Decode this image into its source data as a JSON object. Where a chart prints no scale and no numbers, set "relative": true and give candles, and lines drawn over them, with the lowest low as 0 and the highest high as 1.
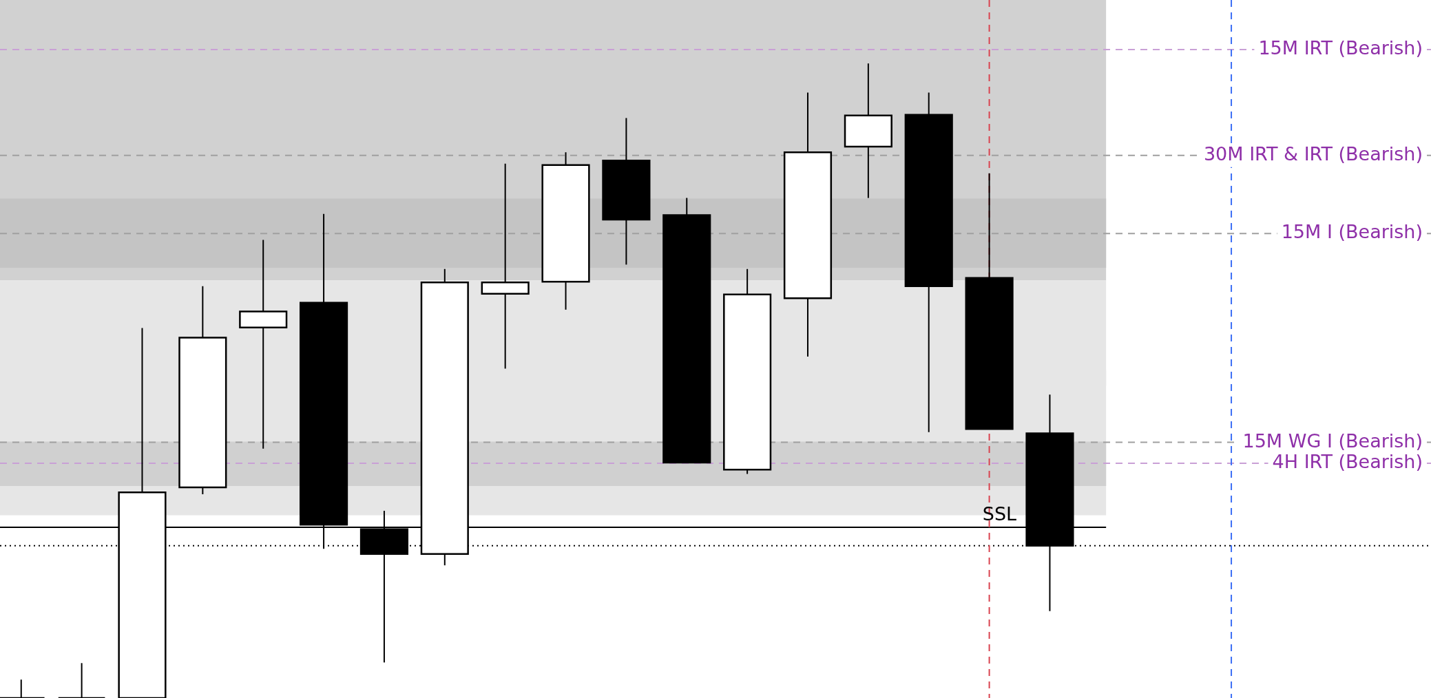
{
  "chart_data": {
    "type": "candlestick",
    "relative": true,
    "categories": [
      null,
      null,
      null,
      null,
      null,
      null,
      null,
      null,
      null,
      null,
      null,
      null,
      null,
      null,
      null,
      null,
      null,
      null
    ],
    "ohlc": [
      [
        0,
        0.029,
        0,
        0
      ],
      [
        0,
        0.055,
        0,
        0
      ],
      [
        0,
        0.583,
        0,
        0.324
      ],
      [
        0.332,
        0.649,
        0.321,
        0.568
      ],
      [
        0.584,
        0.722,
        0.393,
        0.609
      ],
      [
        0.623,
        0.763,
        0.235,
        0.273
      ],
      [
        0.266,
        0.295,
        0.056,
        0.227
      ],
      [
        0.227,
        0.676,
        0.209,
        0.655
      ],
      [
        0.637,
        0.842,
        0.519,
        0.655
      ],
      [
        0.656,
        0.86,
        0.612,
        0.84
      ],
      [
        0.847,
        0.914,
        0.683,
        0.754
      ],
      [
        0.761,
        0.788,
        0.371,
        0.371
      ],
      [
        0.36,
        0.676,
        0.353,
        0.636
      ],
      [
        0.63,
        0.954,
        0.538,
        0.86
      ],
      [
        0.869,
        1.0,
        0.788,
        0.918
      ],
      [
        0.919,
        0.954,
        0.419,
        0.649
      ],
      [
        0.662,
        0.827,
        0.424,
        0.424
      ],
      [
        0.417,
        0.478,
        0.137,
        0.24
      ]
    ],
    "bands": [
      {
        "axis": "y",
        "from": 0.658,
        "to": 1.1,
        "color": "#d1d1d1"
      },
      {
        "axis": "y",
        "from": 0.492,
        "to": 0.658,
        "color": "#e6e6e6"
      },
      {
        "axis": "y",
        "from": 0.288,
        "to": 0.517,
        "color": "#e6e6e6"
      },
      {
        "axis": "y",
        "from": 0.334,
        "to": 0.404,
        "color": "#d0d0d0"
      },
      {
        "axis": "y",
        "from": 0.678,
        "to": 0.787,
        "color": "#c4c4c4"
      }
    ],
    "ref_lines": [
      {
        "axis": "y",
        "value": 1.022,
        "label": "15M IRT (Bearish)",
        "color": "#c9a0d6",
        "line_style": "dashed"
      },
      {
        "axis": "y",
        "value": 0.855,
        "label": "30M IRT & IRT (Bearish)",
        "color": "#a0a0a0",
        "line_style": "dashed"
      },
      {
        "axis": "y",
        "value": 0.732,
        "label": "15M I (Bearish)",
        "color": "#a0a0a0",
        "line_style": "dashed"
      },
      {
        "axis": "y",
        "value": 0.403,
        "label": "15M WG I (Bearish)",
        "color": "#a0a0a0",
        "line_style": "dashed"
      },
      {
        "axis": "y",
        "value": 0.37,
        "label": "4H IRT (Bearish)",
        "color": "#c9a0d6",
        "line_style": "dashed"
      },
      {
        "axis": "y",
        "value": 0.269,
        "label": "SSL",
        "color": "#000000",
        "line_style": "solid"
      },
      {
        "axis": "y",
        "value": 0.24,
        "color": "#000000",
        "line_style": "dotted"
      }
    ]
  }
}
